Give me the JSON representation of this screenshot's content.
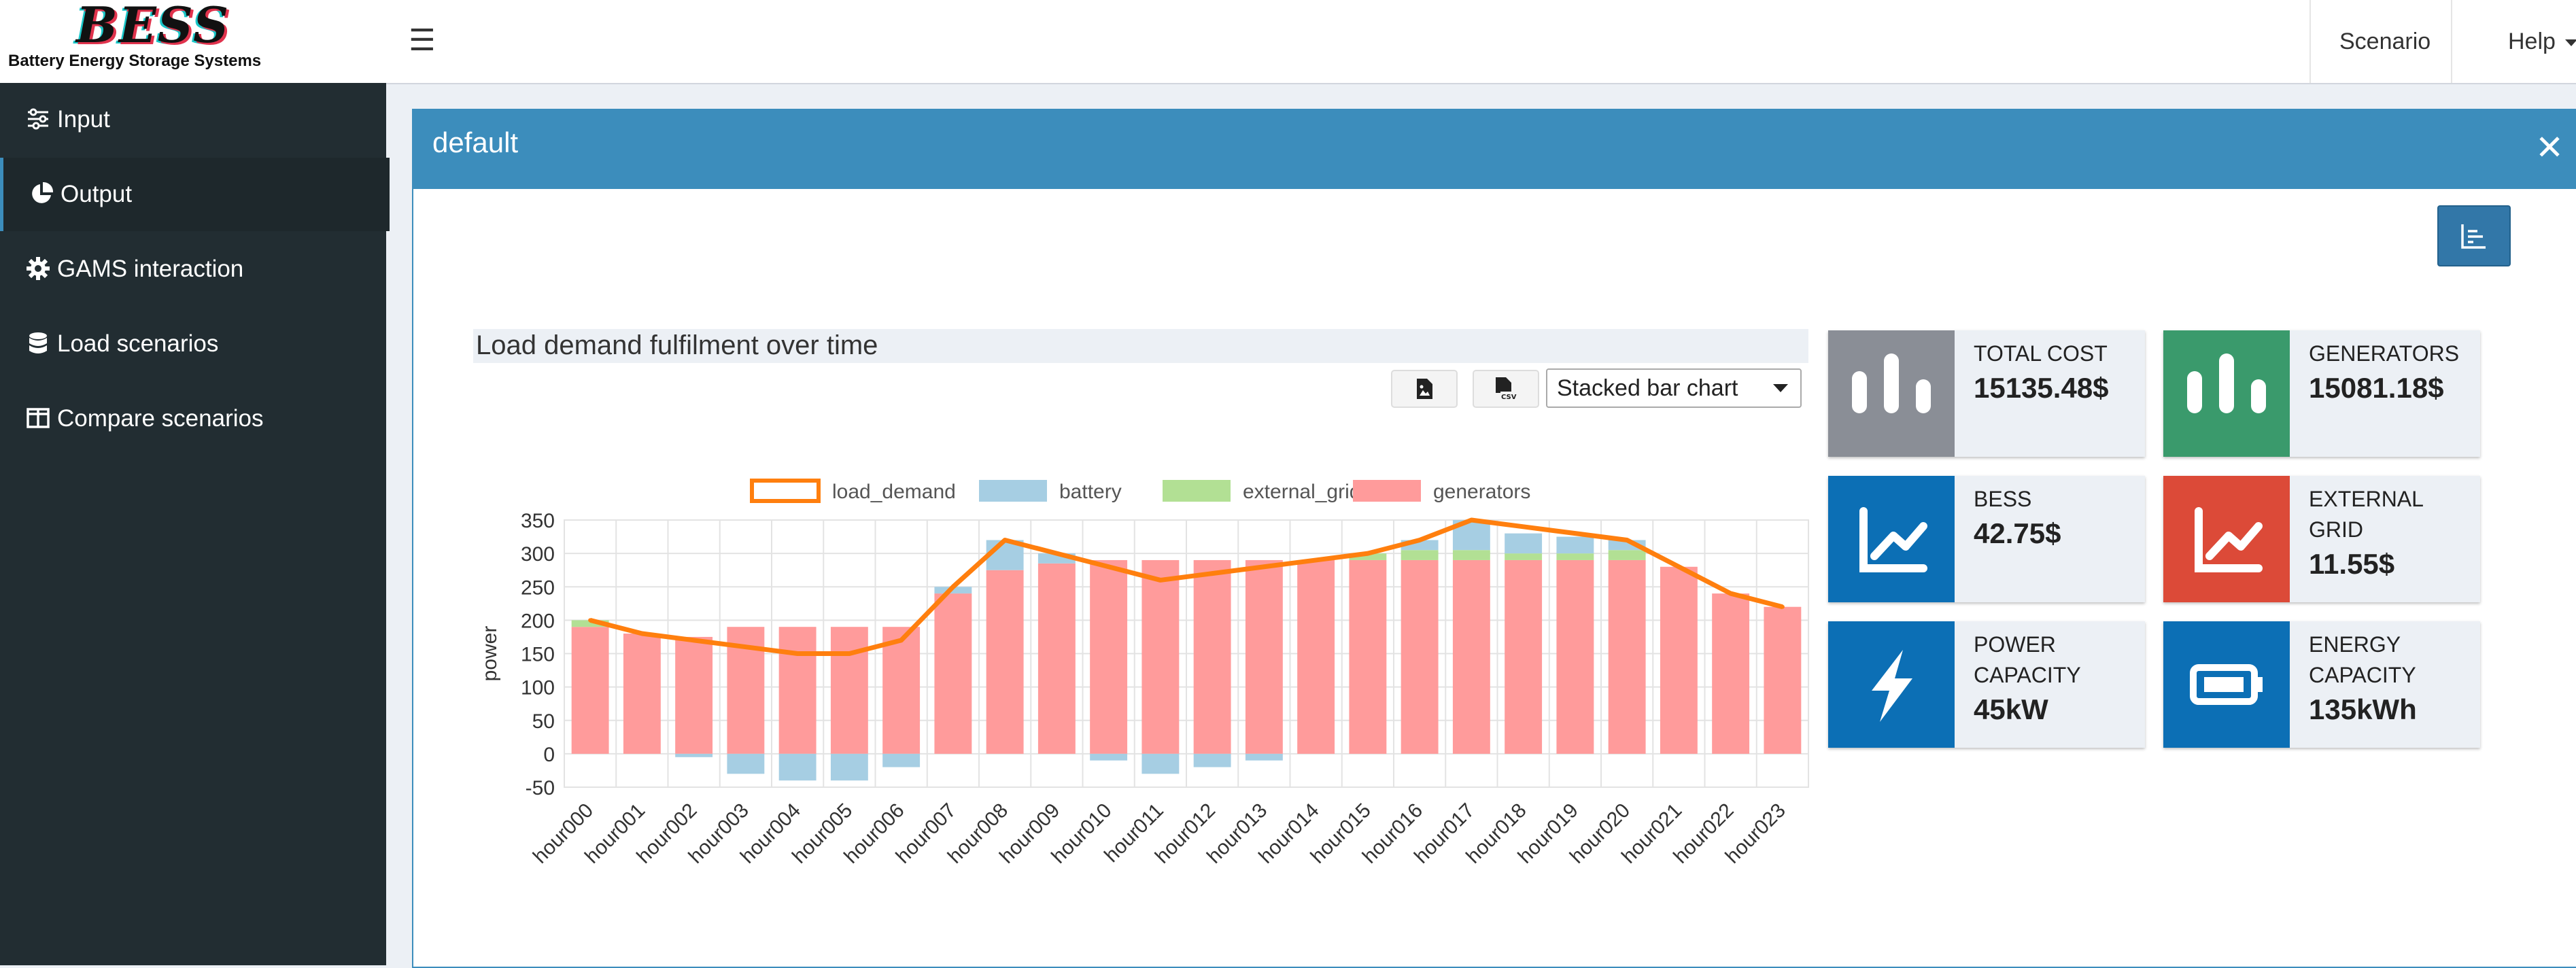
{
  "app": {
    "logo_title": "BESS",
    "logo_subtitle": "Battery Energy Storage Systems"
  },
  "header": {
    "menus": [
      "Scenario",
      "Help"
    ]
  },
  "sidebar": {
    "items": [
      {
        "label": "Input",
        "icon": "sliders-icon"
      },
      {
        "label": "Output",
        "icon": "pie-chart-icon",
        "active": true
      },
      {
        "label": "GAMS interaction",
        "icon": "gear-icon"
      },
      {
        "label": "Load scenarios",
        "icon": "database-icon"
      },
      {
        "label": "Compare scenarios",
        "icon": "columns-icon"
      }
    ]
  },
  "box": {
    "title": "default",
    "close_icon": "close-icon",
    "toolbar_icon": "chart-toggle-icon"
  },
  "chart_panel": {
    "title": "Load demand fulfilment over time",
    "download_png_icon": "file-image-icon",
    "download_csv_icon": "file-csv-icon",
    "chart_type_selected": "Stacked bar chart"
  },
  "chart_data": {
    "type": "bar",
    "stacked": true,
    "categories": [
      "hour000",
      "hour001",
      "hour002",
      "hour003",
      "hour004",
      "hour005",
      "hour006",
      "hour007",
      "hour008",
      "hour009",
      "hour010",
      "hour011",
      "hour012",
      "hour013",
      "hour014",
      "hour015",
      "hour016",
      "hour017",
      "hour018",
      "hour019",
      "hour020",
      "hour021",
      "hour022",
      "hour023"
    ],
    "series": [
      {
        "name": "generators",
        "type": "bar",
        "color": "#ff9b9b",
        "values": [
          190,
          180,
          175,
          190,
          190,
          190,
          190,
          240,
          275,
          285,
          290,
          290,
          290,
          290,
          290,
          290,
          290,
          290,
          290,
          290,
          290,
          280,
          240,
          220
        ]
      },
      {
        "name": "external_grid",
        "type": "bar",
        "color": "#b2e094",
        "values": [
          10,
          0,
          0,
          0,
          0,
          0,
          0,
          0,
          0,
          0,
          0,
          0,
          0,
          0,
          0,
          10,
          15,
          15,
          10,
          10,
          15,
          0,
          0,
          0
        ]
      },
      {
        "name": "battery",
        "type": "bar",
        "color": "#a6cee3",
        "values": [
          0,
          0,
          -5,
          -30,
          -40,
          -40,
          -20,
          10,
          45,
          15,
          -10,
          -30,
          -20,
          -10,
          0,
          0,
          15,
          45,
          30,
          25,
          15,
          0,
          0,
          0
        ]
      },
      {
        "name": "load_demand",
        "type": "line",
        "color": "#ff7f0e",
        "values": [
          200,
          180,
          170,
          160,
          150,
          150,
          170,
          250,
          320,
          300,
          280,
          260,
          270,
          280,
          290,
          300,
          320,
          350,
          340,
          330,
          320,
          280,
          240,
          220
        ]
      }
    ],
    "legend": [
      "load_demand",
      "battery",
      "external_grid",
      "generators"
    ],
    "legend_position": "top",
    "ylabel": "power",
    "xlabel": "",
    "ylim": [
      -50,
      350
    ],
    "yticks": [
      350,
      300,
      250,
      200,
      150,
      100,
      50,
      0,
      -50
    ],
    "grid": true
  },
  "value_boxes": [
    {
      "label": "TOTAL COST",
      "value": "15135.48$",
      "color": "#8a8e96",
      "icon": "bar-chart-icon"
    },
    {
      "label": "GENERATORS",
      "value": "15081.18$",
      "color": "#3a9a6c",
      "icon": "bar-chart-icon"
    },
    {
      "label": "BESS",
      "value": "42.75$",
      "color": "#0c6fb5",
      "icon": "line-chart-icon"
    },
    {
      "label": "EXTERNAL GRID",
      "value": "11.55$",
      "color": "#dc4a38",
      "icon": "line-chart-icon"
    },
    {
      "label": "POWER CAPACITY",
      "value": "45kW",
      "color": "#0c6fb5",
      "icon": "bolt-icon"
    },
    {
      "label": "ENERGY CAPACITY",
      "value": "135kWh",
      "color": "#0c6fb5",
      "icon": "battery-icon"
    }
  ]
}
